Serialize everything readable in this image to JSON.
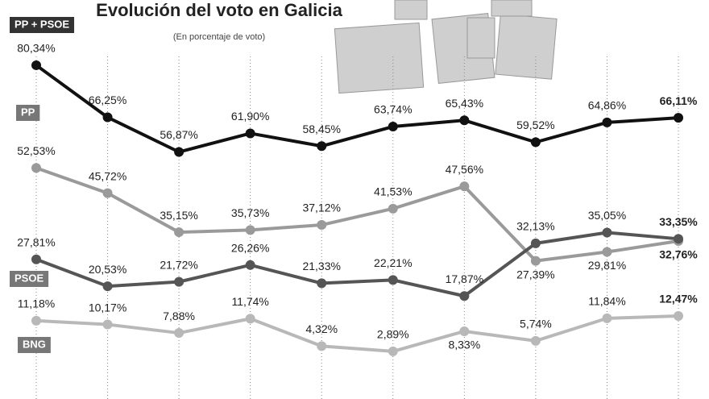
{
  "chart_data": {
    "type": "line",
    "title": "Evolución del voto en Galicia",
    "subtitle": "(En porcentaje de voto)",
    "categories": [
      null,
      null,
      null,
      null,
      null,
      null,
      null,
      null,
      null,
      null
    ],
    "ylim": [
      -10,
      98
    ],
    "series": [
      {
        "name": "PP + PSOE",
        "color": "#111111",
        "values": [
          80.34,
          66.25,
          56.87,
          61.9,
          58.45,
          63.74,
          65.43,
          59.52,
          64.86,
          66.11
        ],
        "value_labels": [
          "80,34%",
          "66,25%",
          "56,87%",
          "61,90%",
          "58,45%",
          "63,74%",
          "65,43%",
          "59,52%",
          "64,86%",
          "66,11%"
        ]
      },
      {
        "name": "PP",
        "color": "#9a9a9a",
        "values": [
          52.53,
          45.72,
          35.15,
          35.73,
          37.12,
          41.53,
          47.56,
          27.39,
          29.81,
          32.76
        ],
        "value_labels": [
          "52,53%",
          "45,72%",
          "35,15%",
          "35,73%",
          "37,12%",
          "41,53%",
          "47,56%",
          "27,39%",
          "29,81%",
          "32,76%"
        ]
      },
      {
        "name": "PSOE",
        "color": "#555555",
        "values": [
          27.81,
          20.53,
          21.72,
          26.26,
          21.33,
          22.21,
          17.87,
          32.13,
          35.05,
          33.35
        ],
        "value_labels": [
          "27,81%",
          "20,53%",
          "21,72%",
          "26,26%",
          "21,33%",
          "22,21%",
          "17,87%",
          "32,13%",
          "35,05%",
          "33,35%"
        ]
      },
      {
        "name": "BNG",
        "color": "#b8b8b8",
        "values": [
          11.18,
          10.17,
          7.88,
          11.74,
          4.32,
          2.89,
          8.33,
          5.74,
          11.84,
          12.47
        ],
        "value_labels": [
          "11,18%",
          "10,17%",
          "7,88%",
          "11,74%",
          "4,32%",
          "2,89%",
          "8,33%",
          "5,74%",
          "11,84%",
          "12,47%"
        ]
      }
    ]
  }
}
